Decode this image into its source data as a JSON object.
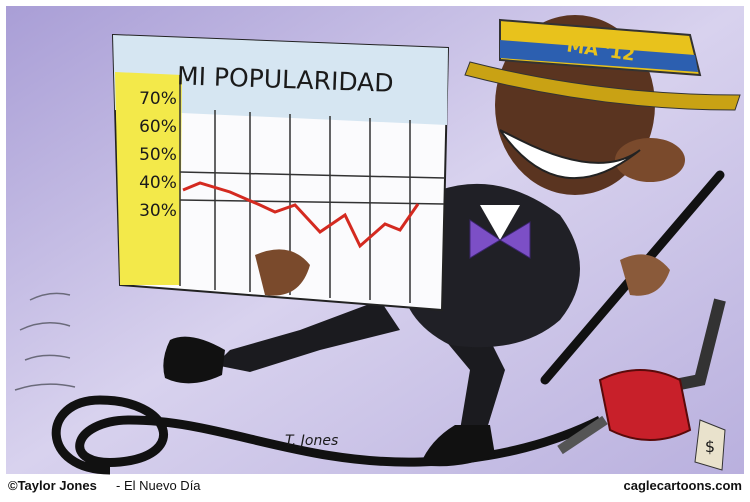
{
  "cartoon": {
    "sign": {
      "title": "MI POPULARIDAD",
      "scale": [
        "70%",
        "60%",
        "50%",
        "40%",
        "30%"
      ]
    },
    "hat_band": "MA '12",
    "signature": "T. Jones",
    "price_tag": "$"
  },
  "footer": {
    "credit": "©Taylor Jones",
    "source": "- El Nuevo Día",
    "site": "caglecartoons.com"
  }
}
